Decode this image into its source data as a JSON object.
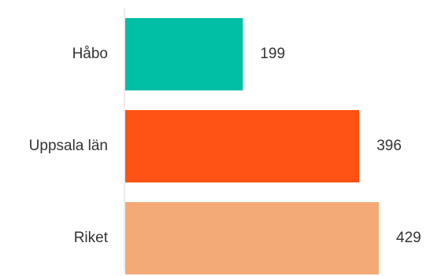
{
  "chart_data": {
    "type": "bar",
    "orientation": "horizontal",
    "categories": [
      "Håbo",
      "Uppsala län",
      "Riket"
    ],
    "values": [
      199,
      396,
      429
    ],
    "title": "",
    "xlabel": "",
    "ylabel": "",
    "xlim": [
      0,
      429
    ],
    "grid": false,
    "legend": "none",
    "colors": [
      "#00BFA5",
      "#FF5214",
      "#F4AA77"
    ]
  }
}
